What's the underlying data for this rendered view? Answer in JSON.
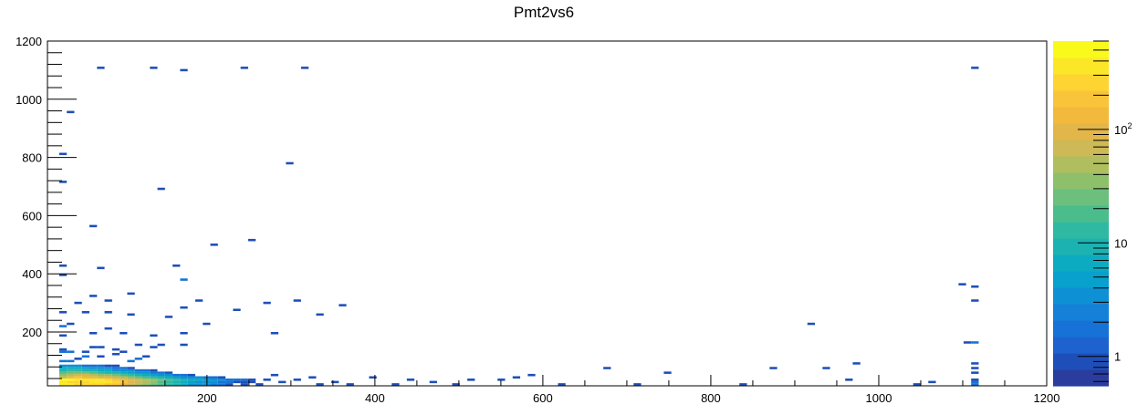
{
  "chart_data": {
    "type": "heatmap",
    "title": "Pmt2vs6",
    "xlabel": "",
    "ylabel": "",
    "xlim": [
      10,
      1200
    ],
    "ylim": [
      15,
      1200
    ],
    "x_tick_labels": [
      "200",
      "400",
      "600",
      "800",
      "1000",
      "1200"
    ],
    "y_tick_labels": [
      "200",
      "400",
      "600",
      "800",
      "1000",
      "1200"
    ],
    "colorbar": {
      "scale": "log",
      "zlim": [
        0.55,
        600
      ],
      "tick_labels": [
        {
          "value": 1,
          "text": "1"
        },
        {
          "value": 10,
          "text": "10"
        },
        {
          "value": 100,
          "text": "10",
          "sup": "2"
        }
      ],
      "palette": [
        "#2a3c9e",
        "#1e4fb8",
        "#1d62cf",
        "#1672d6",
        "#1480d8",
        "#0e90d4",
        "#08a0cc",
        "#0cabc2",
        "#1db2b2",
        "#2fb9a2",
        "#4bbd8d",
        "#6cbf7d",
        "#8ec06c",
        "#afbe5f",
        "#cdb956",
        "#e3b64a",
        "#f2b93c",
        "#fac43a",
        "#fdd431",
        "#fce628",
        "#f9f91c"
      ]
    },
    "bin_size": [
      9,
      8
    ],
    "cells": [
      {
        "x": 24,
        "y": 40,
        "v": 500
      },
      {
        "x": 33,
        "y": 40,
        "v": 450
      },
      {
        "x": 42,
        "y": 40,
        "v": 420
      },
      {
        "x": 51,
        "y": 40,
        "v": 400
      },
      {
        "x": 60,
        "y": 40,
        "v": 380
      },
      {
        "x": 69,
        "y": 40,
        "v": 330
      },
      {
        "x": 78,
        "y": 40,
        "v": 300
      },
      {
        "x": 87,
        "y": 40,
        "v": 220
      },
      {
        "x": 96,
        "y": 40,
        "v": 150
      },
      {
        "x": 105,
        "y": 40,
        "v": 100
      },
      {
        "x": 114,
        "y": 40,
        "v": 70
      },
      {
        "x": 123,
        "y": 40,
        "v": 50
      },
      {
        "x": 132,
        "y": 40,
        "v": 35
      },
      {
        "x": 141,
        "y": 40,
        "v": 25
      },
      {
        "x": 150,
        "y": 40,
        "v": 18
      },
      {
        "x": 159,
        "y": 40,
        "v": 12
      },
      {
        "x": 168,
        "y": 40,
        "v": 8
      },
      {
        "x": 177,
        "y": 40,
        "v": 6
      },
      {
        "x": 186,
        "y": 40,
        "v": 6
      },
      {
        "x": 195,
        "y": 40,
        "v": 5
      },
      {
        "x": 204,
        "y": 40,
        "v": 4
      },
      {
        "x": 213,
        "y": 40,
        "v": 3
      },
      {
        "x": 222,
        "y": 40,
        "v": 2
      },
      {
        "x": 231,
        "y": 40,
        "v": 2
      },
      {
        "x": 240,
        "y": 40,
        "v": 2
      },
      {
        "x": 249,
        "y": 40,
        "v": 1
      },
      {
        "x": 24,
        "y": 32,
        "v": 420
      },
      {
        "x": 33,
        "y": 32,
        "v": 300
      },
      {
        "x": 42,
        "y": 32,
        "v": 280
      },
      {
        "x": 51,
        "y": 32,
        "v": 300
      },
      {
        "x": 60,
        "y": 32,
        "v": 330
      },
      {
        "x": 69,
        "y": 32,
        "v": 350
      },
      {
        "x": 78,
        "y": 32,
        "v": 320
      },
      {
        "x": 87,
        "y": 32,
        "v": 260
      },
      {
        "x": 96,
        "y": 32,
        "v": 180
      },
      {
        "x": 105,
        "y": 32,
        "v": 110
      },
      {
        "x": 114,
        "y": 32,
        "v": 70
      },
      {
        "x": 123,
        "y": 32,
        "v": 45
      },
      {
        "x": 132,
        "y": 32,
        "v": 30
      },
      {
        "x": 141,
        "y": 32,
        "v": 20
      },
      {
        "x": 150,
        "y": 32,
        "v": 12
      },
      {
        "x": 159,
        "y": 32,
        "v": 9
      },
      {
        "x": 168,
        "y": 32,
        "v": 6
      },
      {
        "x": 177,
        "y": 32,
        "v": 5
      },
      {
        "x": 186,
        "y": 32,
        "v": 4
      },
      {
        "x": 195,
        "y": 32,
        "v": 3
      },
      {
        "x": 204,
        "y": 32,
        "v": 3
      },
      {
        "x": 213,
        "y": 32,
        "v": 2
      },
      {
        "x": 222,
        "y": 32,
        "v": 2
      },
      {
        "x": 231,
        "y": 32,
        "v": 1
      },
      {
        "x": 240,
        "y": 32,
        "v": 1
      },
      {
        "x": 24,
        "y": 24,
        "v": 350
      },
      {
        "x": 33,
        "y": 24,
        "v": 330
      },
      {
        "x": 42,
        "y": 24,
        "v": 300
      },
      {
        "x": 51,
        "y": 24,
        "v": 300
      },
      {
        "x": 60,
        "y": 24,
        "v": 300
      },
      {
        "x": 69,
        "y": 24,
        "v": 280
      },
      {
        "x": 78,
        "y": 24,
        "v": 220
      },
      {
        "x": 87,
        "y": 24,
        "v": 160
      },
      {
        "x": 96,
        "y": 24,
        "v": 110
      },
      {
        "x": 105,
        "y": 24,
        "v": 80
      },
      {
        "x": 114,
        "y": 24,
        "v": 55
      },
      {
        "x": 123,
        "y": 24,
        "v": 35
      },
      {
        "x": 132,
        "y": 24,
        "v": 25
      },
      {
        "x": 141,
        "y": 24,
        "v": 17
      },
      {
        "x": 150,
        "y": 24,
        "v": 12
      },
      {
        "x": 159,
        "y": 24,
        "v": 8
      },
      {
        "x": 168,
        "y": 24,
        "v": 6
      },
      {
        "x": 177,
        "y": 24,
        "v": 4
      },
      {
        "x": 186,
        "y": 24,
        "v": 3
      },
      {
        "x": 195,
        "y": 24,
        "v": 3
      },
      {
        "x": 204,
        "y": 24,
        "v": 2
      },
      {
        "x": 213,
        "y": 24,
        "v": 2
      },
      {
        "x": 222,
        "y": 24,
        "v": 1
      },
      {
        "x": 24,
        "y": 48,
        "v": 80
      },
      {
        "x": 33,
        "y": 48,
        "v": 120
      },
      {
        "x": 42,
        "y": 48,
        "v": 160
      },
      {
        "x": 51,
        "y": 48,
        "v": 150
      },
      {
        "x": 60,
        "y": 48,
        "v": 130
      },
      {
        "x": 69,
        "y": 48,
        "v": 110
      },
      {
        "x": 78,
        "y": 48,
        "v": 90
      },
      {
        "x": 87,
        "y": 48,
        "v": 70
      },
      {
        "x": 96,
        "y": 48,
        "v": 55
      },
      {
        "x": 105,
        "y": 48,
        "v": 40
      },
      {
        "x": 114,
        "y": 48,
        "v": 28
      },
      {
        "x": 123,
        "y": 48,
        "v": 20
      },
      {
        "x": 132,
        "y": 48,
        "v": 14
      },
      {
        "x": 141,
        "y": 48,
        "v": 10
      },
      {
        "x": 150,
        "y": 48,
        "v": 7
      },
      {
        "x": 159,
        "y": 48,
        "v": 5
      },
      {
        "x": 168,
        "y": 48,
        "v": 4
      },
      {
        "x": 177,
        "y": 48,
        "v": 3
      },
      {
        "x": 186,
        "y": 48,
        "v": 3
      },
      {
        "x": 195,
        "y": 48,
        "v": 2
      },
      {
        "x": 204,
        "y": 48,
        "v": 2
      },
      {
        "x": 213,
        "y": 48,
        "v": 1
      },
      {
        "x": 24,
        "y": 56,
        "v": 40
      },
      {
        "x": 33,
        "y": 56,
        "v": 55
      },
      {
        "x": 42,
        "y": 56,
        "v": 70
      },
      {
        "x": 51,
        "y": 56,
        "v": 60
      },
      {
        "x": 60,
        "y": 56,
        "v": 50
      },
      {
        "x": 69,
        "y": 56,
        "v": 40
      },
      {
        "x": 78,
        "y": 56,
        "v": 32
      },
      {
        "x": 87,
        "y": 56,
        "v": 25
      },
      {
        "x": 96,
        "y": 56,
        "v": 18
      },
      {
        "x": 105,
        "y": 56,
        "v": 13
      },
      {
        "x": 114,
        "y": 56,
        "v": 10
      },
      {
        "x": 123,
        "y": 56,
        "v": 7
      },
      {
        "x": 132,
        "y": 56,
        "v": 5
      },
      {
        "x": 141,
        "y": 56,
        "v": 4
      },
      {
        "x": 150,
        "y": 56,
        "v": 3
      },
      {
        "x": 159,
        "y": 56,
        "v": 2
      },
      {
        "x": 168,
        "y": 56,
        "v": 2
      },
      {
        "x": 177,
        "y": 56,
        "v": 1
      },
      {
        "x": 24,
        "y": 64,
        "v": 20
      },
      {
        "x": 33,
        "y": 64,
        "v": 25
      },
      {
        "x": 42,
        "y": 64,
        "v": 28
      },
      {
        "x": 51,
        "y": 64,
        "v": 22
      },
      {
        "x": 60,
        "y": 64,
        "v": 18
      },
      {
        "x": 69,
        "y": 64,
        "v": 14
      },
      {
        "x": 78,
        "y": 64,
        "v": 11
      },
      {
        "x": 87,
        "y": 64,
        "v": 9
      },
      {
        "x": 96,
        "y": 64,
        "v": 7
      },
      {
        "x": 105,
        "y": 64,
        "v": 5
      },
      {
        "x": 114,
        "y": 64,
        "v": 4
      },
      {
        "x": 123,
        "y": 64,
        "v": 3
      },
      {
        "x": 132,
        "y": 64,
        "v": 2
      },
      {
        "x": 141,
        "y": 64,
        "v": 2
      },
      {
        "x": 150,
        "y": 64,
        "v": 1
      },
      {
        "x": 24,
        "y": 72,
        "v": 10
      },
      {
        "x": 33,
        "y": 72,
        "v": 12
      },
      {
        "x": 42,
        "y": 72,
        "v": 14
      },
      {
        "x": 51,
        "y": 72,
        "v": 11
      },
      {
        "x": 60,
        "y": 72,
        "v": 9
      },
      {
        "x": 69,
        "y": 72,
        "v": 7
      },
      {
        "x": 78,
        "y": 72,
        "v": 6
      },
      {
        "x": 87,
        "y": 72,
        "v": 4
      },
      {
        "x": 96,
        "y": 72,
        "v": 3
      },
      {
        "x": 105,
        "y": 72,
        "v": 3
      },
      {
        "x": 114,
        "y": 72,
        "v": 2
      },
      {
        "x": 123,
        "y": 72,
        "v": 2
      },
      {
        "x": 132,
        "y": 72,
        "v": 1
      },
      {
        "x": 24,
        "y": 80,
        "v": 6
      },
      {
        "x": 33,
        "y": 80,
        "v": 6
      },
      {
        "x": 42,
        "y": 80,
        "v": 7
      },
      {
        "x": 51,
        "y": 80,
        "v": 5
      },
      {
        "x": 60,
        "y": 80,
        "v": 4
      },
      {
        "x": 69,
        "y": 80,
        "v": 3
      },
      {
        "x": 78,
        "y": 80,
        "v": 3
      },
      {
        "x": 87,
        "y": 80,
        "v": 2
      },
      {
        "x": 96,
        "y": 80,
        "v": 2
      },
      {
        "x": 105,
        "y": 80,
        "v": 1
      },
      {
        "x": 24,
        "y": 88,
        "v": 3
      },
      {
        "x": 33,
        "y": 88,
        "v": 4
      },
      {
        "x": 42,
        "y": 88,
        "v": 3
      },
      {
        "x": 51,
        "y": 88,
        "v": 2
      },
      {
        "x": 60,
        "y": 88,
        "v": 2
      },
      {
        "x": 69,
        "y": 88,
        "v": 2
      },
      {
        "x": 78,
        "y": 88,
        "v": 1
      },
      {
        "x": 87,
        "y": 88,
        "v": 1
      },
      {
        "x": 24,
        "y": 104,
        "v": 2
      },
      {
        "x": 33,
        "y": 104,
        "v": 2
      },
      {
        "x": 42,
        "y": 112,
        "v": 1
      },
      {
        "x": 51,
        "y": 120,
        "v": 2
      },
      {
        "x": 69,
        "y": 120,
        "v": 1
      },
      {
        "x": 87,
        "y": 128,
        "v": 1
      },
      {
        "x": 105,
        "y": 104,
        "v": 2
      },
      {
        "x": 114,
        "y": 112,
        "v": 2
      },
      {
        "x": 123,
        "y": 120,
        "v": 1
      },
      {
        "x": 24,
        "y": 136,
        "v": 2
      },
      {
        "x": 33,
        "y": 136,
        "v": 2
      },
      {
        "x": 24,
        "y": 144,
        "v": 1
      },
      {
        "x": 51,
        "y": 136,
        "v": 1
      },
      {
        "x": 60,
        "y": 152,
        "v": 1
      },
      {
        "x": 69,
        "y": 152,
        "v": 1
      },
      {
        "x": 87,
        "y": 144,
        "v": 1
      },
      {
        "x": 96,
        "y": 136,
        "v": 1
      },
      {
        "x": 114,
        "y": 160,
        "v": 1
      },
      {
        "x": 132,
        "y": 152,
        "v": 1
      },
      {
        "x": 141,
        "y": 160,
        "v": 1
      },
      {
        "x": 168,
        "y": 160,
        "v": 1
      },
      {
        "x": 240,
        "y": 24,
        "v": 1
      },
      {
        "x": 249,
        "y": 32,
        "v": 1
      },
      {
        "x": 258,
        "y": 24,
        "v": 1
      },
      {
        "x": 267,
        "y": 40,
        "v": 1
      },
      {
        "x": 276,
        "y": 56,
        "v": 1
      },
      {
        "x": 285,
        "y": 32,
        "v": 1
      },
      {
        "x": 303,
        "y": 40,
        "v": 1
      },
      {
        "x": 321,
        "y": 48,
        "v": 1
      },
      {
        "x": 330,
        "y": 24,
        "v": 1
      },
      {
        "x": 348,
        "y": 32,
        "v": 1
      },
      {
        "x": 366,
        "y": 24,
        "v": 1
      },
      {
        "x": 393,
        "y": 48,
        "v": 1
      },
      {
        "x": 420,
        "y": 24,
        "v": 1
      },
      {
        "x": 438,
        "y": 40,
        "v": 1
      },
      {
        "x": 465,
        "y": 32,
        "v": 1
      },
      {
        "x": 492,
        "y": 24,
        "v": 1
      },
      {
        "x": 24,
        "y": 192,
        "v": 1
      },
      {
        "x": 24,
        "y": 224,
        "v": 2
      },
      {
        "x": 24,
        "y": 272,
        "v": 1
      },
      {
        "x": 33,
        "y": 232,
        "v": 1
      },
      {
        "x": 60,
        "y": 200,
        "v": 1
      },
      {
        "x": 78,
        "y": 216,
        "v": 1
      },
      {
        "x": 96,
        "y": 200,
        "v": 1
      },
      {
        "x": 132,
        "y": 192,
        "v": 1
      },
      {
        "x": 168,
        "y": 200,
        "v": 1
      },
      {
        "x": 195,
        "y": 232,
        "v": 1
      },
      {
        "x": 276,
        "y": 200,
        "v": 1
      },
      {
        "x": 42,
        "y": 304,
        "v": 1
      },
      {
        "x": 60,
        "y": 328,
        "v": 1
      },
      {
        "x": 78,
        "y": 312,
        "v": 1
      },
      {
        "x": 105,
        "y": 336,
        "v": 1
      },
      {
        "x": 51,
        "y": 272,
        "v": 1
      },
      {
        "x": 78,
        "y": 272,
        "v": 1
      },
      {
        "x": 105,
        "y": 264,
        "v": 1
      },
      {
        "x": 150,
        "y": 256,
        "v": 1
      },
      {
        "x": 168,
        "y": 288,
        "v": 1
      },
      {
        "x": 186,
        "y": 312,
        "v": 1
      },
      {
        "x": 231,
        "y": 280,
        "v": 1
      },
      {
        "x": 267,
        "y": 304,
        "v": 1
      },
      {
        "x": 303,
        "y": 312,
        "v": 1
      },
      {
        "x": 330,
        "y": 264,
        "v": 1
      },
      {
        "x": 357,
        "y": 296,
        "v": 1
      },
      {
        "x": 24,
        "y": 400,
        "v": 1
      },
      {
        "x": 24,
        "y": 432,
        "v": 1
      },
      {
        "x": 69,
        "y": 424,
        "v": 1
      },
      {
        "x": 159,
        "y": 432,
        "v": 1
      },
      {
        "x": 168,
        "y": 384,
        "v": 2
      },
      {
        "x": 204,
        "y": 504,
        "v": 1
      },
      {
        "x": 249,
        "y": 520,
        "v": 1
      },
      {
        "x": 24,
        "y": 720,
        "v": 1
      },
      {
        "x": 24,
        "y": 816,
        "v": 1
      },
      {
        "x": 60,
        "y": 568,
        "v": 1
      },
      {
        "x": 141,
        "y": 696,
        "v": 1
      },
      {
        "x": 294,
        "y": 784,
        "v": 1
      },
      {
        "x": 33,
        "y": 960,
        "v": 1
      },
      {
        "x": 69,
        "y": 1112,
        "v": 1
      },
      {
        "x": 132,
        "y": 1112,
        "v": 1
      },
      {
        "x": 168,
        "y": 1104,
        "v": 1
      },
      {
        "x": 240,
        "y": 1112,
        "v": 1
      },
      {
        "x": 312,
        "y": 1112,
        "v": 1
      },
      {
        "x": 1110,
        "y": 1112,
        "v": 1
      },
      {
        "x": 510,
        "y": 40,
        "v": 1
      },
      {
        "x": 546,
        "y": 40,
        "v": 1
      },
      {
        "x": 564,
        "y": 48,
        "v": 1
      },
      {
        "x": 582,
        "y": 56,
        "v": 1
      },
      {
        "x": 618,
        "y": 24,
        "v": 1
      },
      {
        "x": 672,
        "y": 80,
        "v": 1
      },
      {
        "x": 708,
        "y": 24,
        "v": 1
      },
      {
        "x": 744,
        "y": 64,
        "v": 1
      },
      {
        "x": 834,
        "y": 24,
        "v": 1
      },
      {
        "x": 870,
        "y": 80,
        "v": 1
      },
      {
        "x": 915,
        "y": 232,
        "v": 1
      },
      {
        "x": 933,
        "y": 80,
        "v": 1
      },
      {
        "x": 960,
        "y": 40,
        "v": 1
      },
      {
        "x": 969,
        "y": 96,
        "v": 1
      },
      {
        "x": 1041,
        "y": 24,
        "v": 1
      },
      {
        "x": 1059,
        "y": 32,
        "v": 1
      },
      {
        "x": 1095,
        "y": 368,
        "v": 1
      },
      {
        "x": 1110,
        "y": 24,
        "v": 2
      },
      {
        "x": 1110,
        "y": 32,
        "v": 2
      },
      {
        "x": 1110,
        "y": 40,
        "v": 1
      },
      {
        "x": 1110,
        "y": 64,
        "v": 1
      },
      {
        "x": 1110,
        "y": 80,
        "v": 1
      },
      {
        "x": 1110,
        "y": 96,
        "v": 1
      },
      {
        "x": 1110,
        "y": 168,
        "v": 2
      },
      {
        "x": 1101,
        "y": 168,
        "v": 1
      },
      {
        "x": 1110,
        "y": 312,
        "v": 1
      },
      {
        "x": 1110,
        "y": 360,
        "v": 1
      }
    ]
  }
}
